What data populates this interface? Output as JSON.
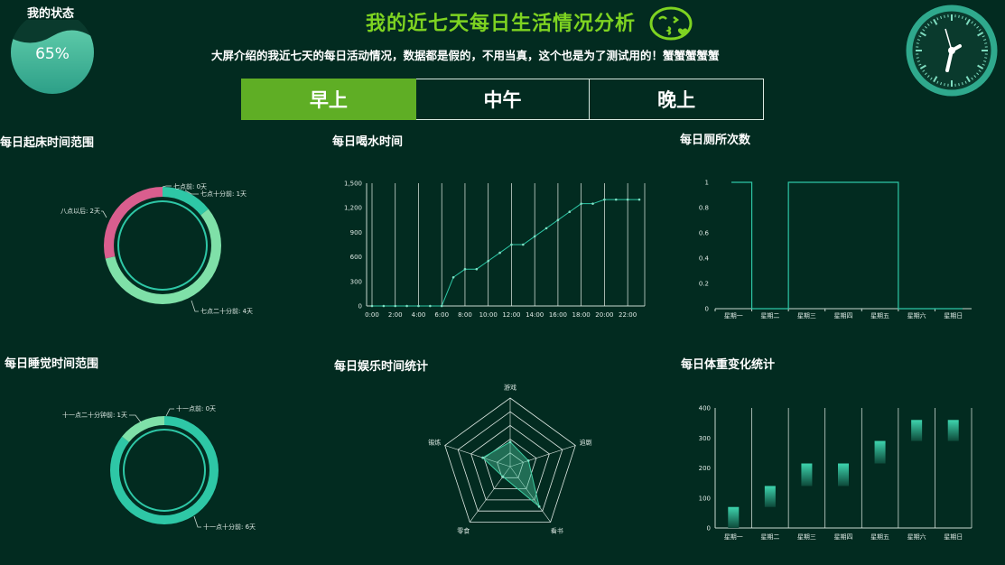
{
  "header": {
    "status_label": "我的状态",
    "status_value": "65%",
    "title": "我的近七天每日生活情况分析",
    "subtitle": "大屏介绍的我近七天的每日活动情况，数据都是假的，不用当真，这个也是为了测试用的！蟹蟹蟹蟹蟹"
  },
  "tabs": [
    {
      "label": "早上",
      "active": true
    },
    {
      "label": "中午",
      "active": false
    },
    {
      "label": "晚上",
      "active": false
    }
  ],
  "colors": {
    "background": "#022b20",
    "accent": "#7ed321",
    "teal": "#2ec7a6",
    "light_green": "#7fe0a8",
    "pink": "#d95e8e"
  },
  "chart_data": [
    {
      "id": "wake",
      "type": "pie",
      "title": "每日起床时间范围",
      "slices": [
        {
          "label": "七点前",
          "value": 0,
          "color": "#2ec7a6"
        },
        {
          "label": "七点十分前",
          "value": 1,
          "color": "#2ec7a6"
        },
        {
          "label": "七点二十分前",
          "value": 4,
          "color": "#7fe0a8"
        },
        {
          "label": "八点以后",
          "value": 2,
          "color": "#d95e8e"
        }
      ],
      "label_suffix": "天"
    },
    {
      "id": "water",
      "type": "line",
      "title": "每日喝水时间",
      "x": [
        "0:00",
        "1:00",
        "2:00",
        "3:00",
        "4:00",
        "5:00",
        "6:00",
        "7:00",
        "8:00",
        "9:00",
        "10:00",
        "11:00",
        "12:00",
        "13:00",
        "14:00",
        "15:00",
        "16:00",
        "17:00",
        "18:00",
        "19:00",
        "20:00",
        "21:00",
        "22:00",
        "23:00"
      ],
      "values": [
        0,
        0,
        0,
        0,
        0,
        0,
        0,
        350,
        450,
        450,
        550,
        650,
        750,
        750,
        850,
        950,
        1050,
        1150,
        1250,
        1250,
        1300,
        1300,
        1300,
        1300
      ],
      "x_tick_labels": [
        "0:00",
        "2:00",
        "4:00",
        "6:00",
        "8:00",
        "10:00",
        "12:00",
        "14:00",
        "16:00",
        "18:00",
        "20:00",
        "22:00"
      ],
      "y_ticks": [
        "0",
        "300",
        "600",
        "900",
        "1,200",
        "1,500"
      ],
      "ylim": [
        0,
        1500
      ]
    },
    {
      "id": "toilet",
      "type": "line",
      "title": "每日厕所次数",
      "categories": [
        "星期一",
        "星期二",
        "星期三",
        "星期四",
        "星期五",
        "星期六",
        "星期日"
      ],
      "values": [
        1,
        0,
        1,
        1,
        1,
        0,
        0
      ],
      "step": true,
      "y_ticks": [
        "0",
        "0.2",
        "0.4",
        "0.6",
        "0.8",
        "1"
      ],
      "ylim": [
        0,
        1
      ]
    },
    {
      "id": "sleep",
      "type": "pie",
      "title": "每日睡觉时间范围",
      "slices": [
        {
          "label": "十一点前",
          "value": 0,
          "color": "#2ec7a6"
        },
        {
          "label": "十一点十分前",
          "value": 6,
          "color": "#2ec7a6"
        },
        {
          "label": "十一点二十分钟前",
          "value": 1,
          "color": "#7fe0a8"
        }
      ],
      "label_suffix": "天"
    },
    {
      "id": "fun",
      "type": "radar",
      "title": "每日娱乐时间统计",
      "indicators": [
        "游戏",
        "追剧",
        "看书",
        "零食",
        "锻炼"
      ],
      "values": [
        0.36,
        0.28,
        0.72,
        0.18,
        0.42
      ]
    },
    {
      "id": "weight",
      "type": "bar",
      "title": "每日体重变化统计",
      "categories": [
        "星期一",
        "星期二",
        "星期三",
        "星期四",
        "星期五",
        "星期六",
        "星期日"
      ],
      "ranges": [
        [
          0,
          70
        ],
        [
          70,
          140
        ],
        [
          140,
          215
        ],
        [
          140,
          215
        ],
        [
          215,
          290
        ],
        [
          290,
          360
        ],
        [
          290,
          360
        ]
      ],
      "y_ticks": [
        "0",
        "100",
        "200",
        "300",
        "400"
      ],
      "ylim": [
        0,
        400
      ]
    }
  ]
}
